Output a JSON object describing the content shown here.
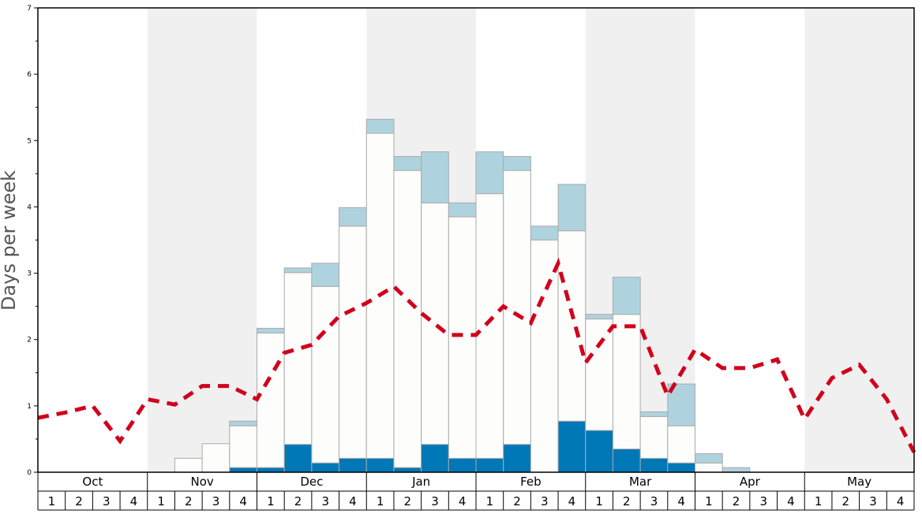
{
  "chart_data": {
    "type": "bar",
    "title": "",
    "xlabel": "",
    "ylabel": "Days per week",
    "ylim": [
      0,
      7
    ],
    "yticks": [
      "0",
      "1",
      "2",
      "3",
      "4",
      "5",
      "6",
      "7"
    ],
    "months": [
      "Oct",
      "Nov",
      "Dec",
      "Jan",
      "Feb",
      "Mar",
      "Apr",
      "May"
    ],
    "shaded_months": [
      "Nov",
      "Jan",
      "Mar",
      "May"
    ],
    "week_labels": [
      "1",
      "2",
      "3",
      "4"
    ],
    "stacked_series": [
      {
        "name": "dark",
        "color": "#0077b6",
        "values": [
          0,
          0,
          0,
          0,
          0,
          0,
          0,
          0.07,
          0.07,
          0.42,
          0.14,
          0.21,
          0.21,
          0.07,
          0.42,
          0.21,
          0.21,
          0.42,
          0,
          0.77,
          0.63,
          0.35,
          0.21,
          0.14,
          0,
          0,
          0,
          0,
          0,
          0,
          0,
          0
        ]
      },
      {
        "name": "white",
        "color": "#fdfdfb",
        "values": [
          0,
          0,
          0,
          0,
          0,
          0.21,
          0.43,
          0.63,
          2.03,
          2.59,
          2.66,
          3.5,
          4.9,
          4.48,
          3.64,
          3.64,
          3.99,
          4.13,
          3.5,
          2.87,
          1.68,
          2.03,
          0.63,
          0.56,
          0.14,
          0,
          0,
          0,
          0,
          0,
          0,
          0
        ]
      },
      {
        "name": "light",
        "color": "#aed3de",
        "values": [
          0,
          0,
          0,
          0,
          0,
          0,
          0,
          0.07,
          0.07,
          0.07,
          0.35,
          0.28,
          0.21,
          0.21,
          0.77,
          0.21,
          0.63,
          0.21,
          0.21,
          0.7,
          0.07,
          0.56,
          0.07,
          0.63,
          0.14,
          0.07,
          0,
          0,
          0,
          0,
          0,
          0
        ]
      }
    ],
    "line_series": {
      "name": "average",
      "color": "#d0021b",
      "style": "dashed",
      "values": [
        0.82,
        0.9,
        1.0,
        0.47,
        1.1,
        1.02,
        1.3,
        1.3,
        1.1,
        1.8,
        1.92,
        2.35,
        2.55,
        2.8,
        2.4,
        2.07,
        2.07,
        2.5,
        2.25,
        3.15,
        1.65,
        2.2,
        2.2,
        1.15,
        1.85,
        1.57,
        1.57,
        1.7,
        0.8,
        1.42,
        1.62,
        1.1,
        0.3
      ]
    }
  }
}
